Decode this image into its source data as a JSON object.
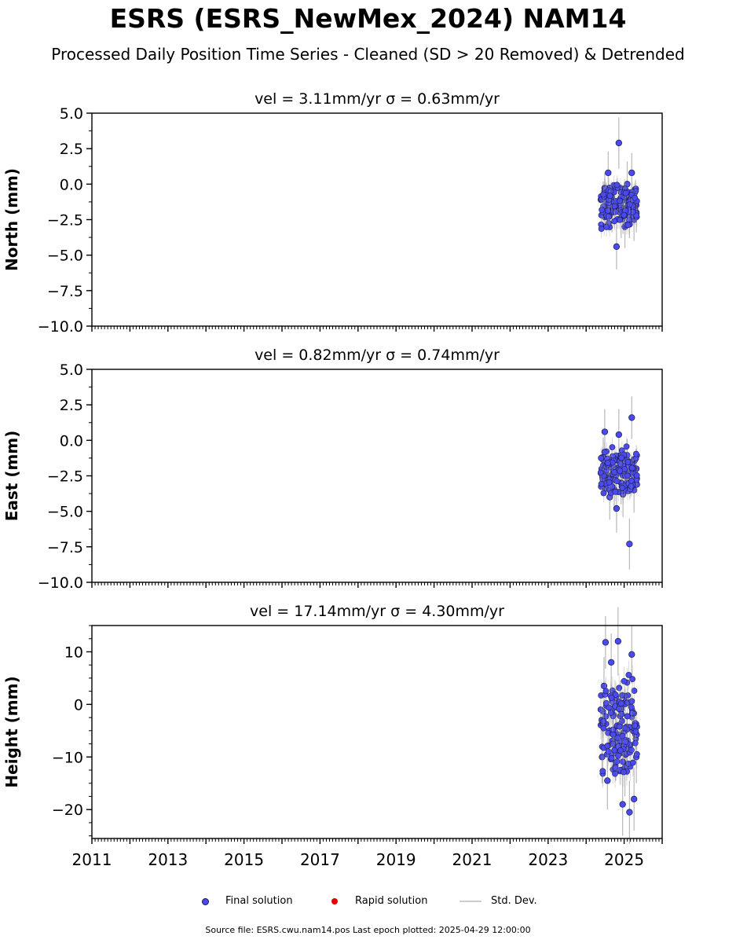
{
  "title": "ESRS (ESRS_NewMex_2024) NAM14",
  "subtitle": "Processed Daily Position Time Series - Cleaned (SD > 20 Removed) & Detrended",
  "colors": {
    "final": "#4a4af0",
    "rapid": "#e00000",
    "stddev": "#9a9a9a",
    "marker_edge": "#1a1a4a"
  },
  "chart_data": [
    {
      "type": "scatter",
      "title": "vel = 3.11mm/yr   σ = 0.63mm/yr",
      "ylabel": "North (mm)",
      "ylim": [
        -10,
        5
      ],
      "yticks": [
        5,
        2.5,
        0,
        -2.5,
        -5,
        -7.5,
        -10
      ],
      "ytick_labels": [
        "5.0",
        "2.5",
        "0.0",
        "−2.5",
        "−5.0",
        "−7.5",
        "−10.0"
      ],
      "xlim": [
        2011,
        2026
      ],
      "grid": false,
      "series": [
        {
          "name": "Final solution",
          "x": [
            2024.45,
            2024.49,
            2024.53,
            2024.58,
            2024.62,
            2024.68,
            2024.74,
            2024.8,
            2024.86,
            2024.92,
            2024.97,
            2025.02,
            2025.08,
            2025.14,
            2025.2,
            2025.26,
            2025.32
          ],
          "y": [
            -1.0,
            -0.5,
            -1.2,
            0.8,
            -1.5,
            -2.0,
            -1.8,
            -4.4,
            2.9,
            -2.4,
            -2.0,
            -3.0,
            0.0,
            -2.3,
            0.8,
            -2.5,
            -2.0
          ],
          "err": [
            1.2,
            1.3,
            1.3,
            1.5,
            1.3,
            1.4,
            1.3,
            1.6,
            1.8,
            1.4,
            1.5,
            1.5,
            1.6,
            1.5,
            1.4,
            1.5,
            1.4
          ]
        }
      ]
    },
    {
      "type": "scatter",
      "title": "vel = 0.82mm/yr   σ = 0.74mm/yr",
      "ylabel": "East (mm)",
      "ylim": [
        -10,
        5
      ],
      "yticks": [
        5,
        2.5,
        0,
        -2.5,
        -5,
        -7.5,
        -10
      ],
      "ytick_labels": [
        "5.0",
        "2.5",
        "0.0",
        "−2.5",
        "−5.0",
        "−7.5",
        "−10.0"
      ],
      "xlim": [
        2011,
        2026
      ],
      "grid": false,
      "series": [
        {
          "name": "Final solution",
          "x": [
            2024.45,
            2024.49,
            2024.53,
            2024.58,
            2024.62,
            2024.68,
            2024.74,
            2024.8,
            2024.86,
            2024.92,
            2024.97,
            2025.02,
            2025.08,
            2025.14,
            2025.2,
            2025.26,
            2025.32
          ],
          "y": [
            -1.2,
            0.6,
            -2.0,
            -2.5,
            -4.0,
            -2.8,
            -3.5,
            -4.8,
            0.4,
            -3.0,
            -3.8,
            -2.5,
            -1.5,
            -7.3,
            1.6,
            -3.5,
            -2.0
          ],
          "err": [
            1.4,
            1.6,
            1.4,
            1.5,
            1.6,
            1.4,
            1.5,
            1.7,
            1.8,
            1.5,
            1.6,
            1.5,
            1.6,
            1.8,
            1.5,
            1.6,
            1.4
          ]
        }
      ]
    },
    {
      "type": "scatter",
      "title": "vel = 17.14mm/yr   σ = 4.30mm/yr",
      "ylabel": "Height (mm)",
      "ylim": [
        -25.5,
        15
      ],
      "yticks": [
        10,
        0,
        -10,
        -20
      ],
      "ytick_labels": [
        "10",
        "0",
        "−10",
        "−20"
      ],
      "xlim": [
        2011,
        2026
      ],
      "xticks": [
        2011,
        2013,
        2015,
        2017,
        2019,
        2021,
        2023,
        2025
      ],
      "xtick_labels": [
        "2011",
        "2013",
        "2015",
        "2017",
        "2019",
        "2021",
        "2023",
        "2025"
      ],
      "grid": false,
      "series": [
        {
          "name": "Final solution",
          "x": [
            2024.42,
            2024.47,
            2024.51,
            2024.56,
            2024.61,
            2024.66,
            2024.72,
            2024.78,
            2024.84,
            2024.9,
            2024.96,
            2025.02,
            2025.08,
            2025.14,
            2025.2,
            2025.26,
            2025.32
          ],
          "y": [
            -10.0,
            3.5,
            11.8,
            -14.5,
            -5.0,
            8.0,
            -2.0,
            -8.5,
            12.0,
            -1.0,
            -19.0,
            -12.0,
            -8.0,
            -20.5,
            9.5,
            -18.0,
            -10.0
          ],
          "err": [
            5.0,
            5.5,
            5.0,
            5.5,
            6.0,
            5.5,
            5.0,
            6.0,
            6.5,
            5.5,
            6.0,
            5.5,
            5.5,
            6.0,
            5.5,
            6.0,
            5.0
          ]
        }
      ]
    }
  ],
  "legend": {
    "final_label": "Final solution",
    "rapid_label": "Rapid solution",
    "stddev_label": "Std. Dev."
  },
  "footer": "Source file: ESRS.cwu.nam14.pos  Last epoch plotted: 2025-04-29 12:00:00"
}
